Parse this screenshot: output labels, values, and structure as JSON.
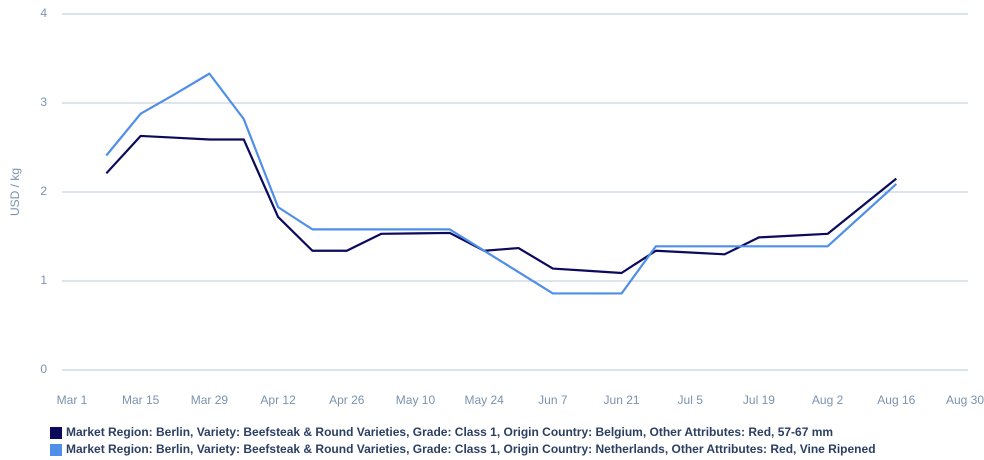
{
  "chart_data": {
    "type": "line",
    "y_label": "USD / kg",
    "categories": [
      "Mar 1",
      null,
      "Mar 15",
      null,
      "Mar 29",
      null,
      "Apr 12",
      null,
      "Apr 26",
      null,
      "May 10",
      null,
      "May 24",
      null,
      "Jun 7",
      null,
      "Jun 21",
      null,
      "Jul 5",
      null,
      "Jul 19",
      null,
      "Aug 2",
      null,
      "Aug 16",
      null,
      "Aug 30"
    ],
    "ylim": [
      0,
      4
    ],
    "yticks": [
      0,
      1,
      2,
      3,
      4
    ],
    "grid": true,
    "legend": "bottom-left",
    "series": [
      {
        "name": "Market Region: Berlin, Variety: Beefsteak & Round Varieties, Grade: Class 1, Origin Country: Belgium, Other Attributes: Red, 57-67 mm",
        "color": "#0b0a5c",
        "values": [
          null,
          2.21,
          2.63,
          2.61,
          2.59,
          2.59,
          1.72,
          1.34,
          1.34,
          1.53,
          1.535,
          1.54,
          1.34,
          1.37,
          1.14,
          1.115,
          1.09,
          1.34,
          1.32,
          1.3,
          1.49,
          1.51,
          1.53,
          1.84,
          2.15,
          null,
          null
        ]
      },
      {
        "name": "Market Region: Berlin, Variety: Beefsteak & Round Varieties, Grade: Class 1, Origin Country: Netherlands, Other Attributes: Red, Vine Ripened",
        "color": "#4f8fe8",
        "values": [
          null,
          2.41,
          2.88,
          3.1,
          3.33,
          2.82,
          1.83,
          1.58,
          1.58,
          1.58,
          1.58,
          1.58,
          1.34,
          1.1,
          0.86,
          0.86,
          0.86,
          1.39,
          1.39,
          1.39,
          1.39,
          1.39,
          1.39,
          1.74,
          2.09,
          null,
          null
        ]
      }
    ]
  }
}
